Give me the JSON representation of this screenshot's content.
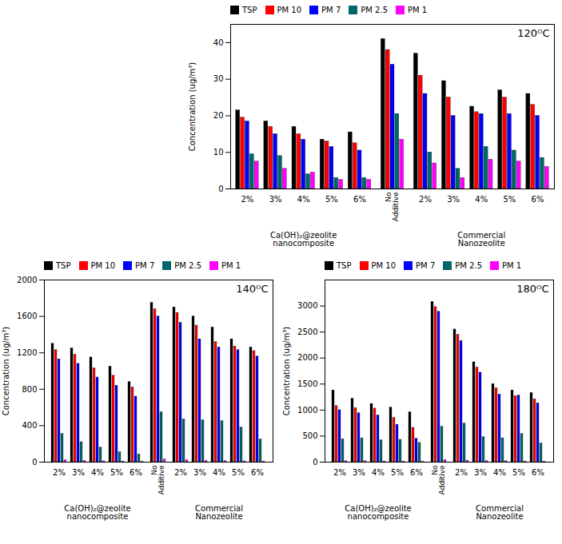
{
  "chart_data": [
    {
      "type": "bar",
      "title": "120ᴼC",
      "ylabel": "Concentration (ug/m³)",
      "categories": [
        "2%",
        "3%",
        "4%",
        "5%",
        "6%",
        "No\nAdditive",
        "2%",
        "3%",
        "4%",
        "5%",
        "6%"
      ],
      "series": [
        {
          "name": "TSP",
          "color": "black",
          "values": [
            21.5,
            18.5,
            17.0,
            13.5,
            15.5,
            41.0,
            37.0,
            29.5,
            22.5,
            27.0,
            26.0
          ]
        },
        {
          "name": "PM 10",
          "color": "red",
          "values": [
            19.5,
            17.0,
            15.0,
            13.0,
            12.5,
            38.0,
            31.0,
            25.0,
            21.0,
            25.0,
            23.0
          ]
        },
        {
          "name": "PM 7",
          "color": "blue",
          "values": [
            18.5,
            15.0,
            13.5,
            11.5,
            10.5,
            34.0,
            26.0,
            20.0,
            20.5,
            20.5,
            20.0
          ]
        },
        {
          "name": "PM 2.5",
          "color": "#006868",
          "values": [
            9.5,
            9.0,
            4.0,
            3.0,
            3.0,
            20.5,
            10.0,
            5.5,
            11.5,
            10.5,
            8.5
          ]
        },
        {
          "name": "PM 1",
          "color": "magenta",
          "values": [
            7.5,
            5.5,
            4.5,
            2.5,
            2.5,
            13.5,
            7.0,
            3.0,
            8.0,
            7.5,
            6.0
          ]
        }
      ],
      "ylim": [
        0,
        45
      ],
      "yticks": [
        0,
        10,
        20,
        30,
        40
      ],
      "grid": false,
      "legend": "upper left",
      "annotations": [
        "Ca(OH)₂@zeolite\nnanocomposite",
        "Commercial\nNanozeolite"
      ]
    },
    {
      "type": "bar",
      "title": "140ᴼC",
      "ylabel": "Concentration (ug/m³)",
      "categories": [
        "2%",
        "3%",
        "4%",
        "5%",
        "6%",
        "No\nAdditive",
        "2%",
        "3%",
        "4%",
        "5%",
        "6%"
      ],
      "series": [
        {
          "name": "TSP",
          "color": "black",
          "values": [
            1300,
            1250,
            1150,
            1050,
            880,
            1750,
            1700,
            1600,
            1480,
            1350,
            1260
          ]
        },
        {
          "name": "PM 10",
          "color": "red",
          "values": [
            1230,
            1180,
            1030,
            950,
            820,
            1680,
            1640,
            1500,
            1320,
            1270,
            1220
          ]
        },
        {
          "name": "PM 7",
          "color": "blue",
          "values": [
            1130,
            1080,
            930,
            840,
            720,
            1600,
            1530,
            1350,
            1260,
            1230,
            1160
          ]
        },
        {
          "name": "PM 2.5",
          "color": "#006868",
          "values": [
            310,
            220,
            160,
            110,
            85,
            550,
            470,
            460,
            450,
            380,
            250
          ]
        },
        {
          "name": "PM 1",
          "color": "magenta",
          "values": [
            20,
            15,
            10,
            8,
            5,
            30,
            20,
            15,
            12,
            10,
            8
          ]
        }
      ],
      "ylim": [
        0,
        2000
      ],
      "yticks": [
        0,
        400,
        800,
        1200,
        1600,
        2000
      ],
      "grid": false,
      "legend": "upper left",
      "annotations": [
        "Ca(OH)₂@zeolite\nnanocomposite",
        "Commercial\nNanozeolite"
      ]
    },
    {
      "type": "bar",
      "title": "180ᴼC",
      "ylabel": "Concentration (ug/m³)",
      "categories": [
        "2%",
        "3%",
        "4%",
        "5%",
        "6%",
        "No\nAdditive",
        "2%",
        "3%",
        "4%",
        "5%",
        "6%"
      ],
      "series": [
        {
          "name": "TSP",
          "color": "black",
          "values": [
            1380,
            1220,
            1120,
            1050,
            960,
            3080,
            2550,
            1920,
            1500,
            1380,
            1330
          ]
        },
        {
          "name": "PM 10",
          "color": "red",
          "values": [
            1080,
            1040,
            1030,
            850,
            660,
            2980,
            2450,
            1820,
            1420,
            1270,
            1210
          ]
        },
        {
          "name": "PM 7",
          "color": "blue",
          "values": [
            1000,
            940,
            900,
            720,
            450,
            2890,
            2330,
            1720,
            1300,
            1280,
            1130
          ]
        },
        {
          "name": "PM 2.5",
          "color": "#006868",
          "values": [
            440,
            460,
            420,
            430,
            370,
            680,
            740,
            480,
            460,
            540,
            360
          ]
        },
        {
          "name": "PM 1",
          "color": "magenta",
          "values": [
            20,
            18,
            15,
            12,
            10,
            40,
            30,
            20,
            18,
            15,
            12
          ]
        }
      ],
      "ylim": [
        0,
        3500
      ],
      "yticks": [
        0,
        500,
        1000,
        1500,
        2000,
        2500,
        3000
      ],
      "grid": false,
      "legend": "upper left",
      "annotations": [
        "Ca(OH)₂@zeolite\nnanocomposite",
        "Commercial\nNanozeolite"
      ]
    }
  ]
}
